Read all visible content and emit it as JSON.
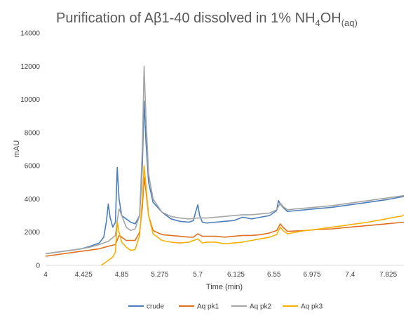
{
  "chart_data": {
    "type": "line",
    "title": {
      "main": "Purification of Aβ1-40 dissolved in 1% NH",
      "sub1": "4",
      "mid": "OH",
      "sub2": "(aq)"
    },
    "xlabel": "Time (min)",
    "ylabel": "mAU",
    "xlim": [
      4,
      8
    ],
    "ylim": [
      0,
      14000
    ],
    "x_ticks": [
      "4",
      "4.425",
      "4.85",
      "5.275",
      "5.7",
      "6.125",
      "6.55",
      "6.975",
      "7.4",
      "7.825"
    ],
    "y_ticks": [
      "0",
      "2000",
      "4000",
      "6000",
      "8000",
      "10000",
      "12000",
      "14000"
    ],
    "grid": false,
    "legend_position": "bottom",
    "series": [
      {
        "name": "crude",
        "color": "#4A7EBB",
        "points": [
          [
            4.0,
            700
          ],
          [
            4.2,
            850
          ],
          [
            4.4,
            1000
          ],
          [
            4.5,
            1150
          ],
          [
            4.6,
            1350
          ],
          [
            4.65,
            1700
          ],
          [
            4.68,
            2700
          ],
          [
            4.7,
            3700
          ],
          [
            4.72,
            2900
          ],
          [
            4.75,
            2300
          ],
          [
            4.78,
            2600
          ],
          [
            4.8,
            5900
          ],
          [
            4.82,
            4000
          ],
          [
            4.85,
            3000
          ],
          [
            4.9,
            2800
          ],
          [
            4.95,
            2600
          ],
          [
            5.0,
            2500
          ],
          [
            5.05,
            3000
          ],
          [
            5.08,
            6000
          ],
          [
            5.1,
            9900
          ],
          [
            5.12,
            7500
          ],
          [
            5.15,
            5000
          ],
          [
            5.2,
            3800
          ],
          [
            5.3,
            3200
          ],
          [
            5.4,
            2800
          ],
          [
            5.5,
            2650
          ],
          [
            5.6,
            2600
          ],
          [
            5.65,
            2700
          ],
          [
            5.68,
            3300
          ],
          [
            5.7,
            3650
          ],
          [
            5.72,
            3000
          ],
          [
            5.75,
            2600
          ],
          [
            5.8,
            2550
          ],
          [
            5.9,
            2600
          ],
          [
            6.0,
            2650
          ],
          [
            6.1,
            2700
          ],
          [
            6.2,
            2900
          ],
          [
            6.3,
            2800
          ],
          [
            6.4,
            2900
          ],
          [
            6.5,
            3000
          ],
          [
            6.58,
            3300
          ],
          [
            6.6,
            3900
          ],
          [
            6.62,
            3700
          ],
          [
            6.65,
            3500
          ],
          [
            6.7,
            3250
          ],
          [
            6.8,
            3300
          ],
          [
            6.9,
            3350
          ],
          [
            7.0,
            3400
          ],
          [
            7.2,
            3500
          ],
          [
            7.4,
            3650
          ],
          [
            7.6,
            3800
          ],
          [
            7.8,
            3950
          ],
          [
            8.0,
            4150
          ]
        ]
      },
      {
        "name": "Aq pk1",
        "color": "#E07020",
        "points": [
          [
            4.0,
            550
          ],
          [
            4.2,
            700
          ],
          [
            4.4,
            850
          ],
          [
            4.6,
            1000
          ],
          [
            4.7,
            1150
          ],
          [
            4.78,
            1250
          ],
          [
            4.82,
            1800
          ],
          [
            4.85,
            1700
          ],
          [
            4.9,
            1500
          ],
          [
            5.0,
            1500
          ],
          [
            5.05,
            2000
          ],
          [
            5.08,
            3500
          ],
          [
            5.1,
            5300
          ],
          [
            5.12,
            4500
          ],
          [
            5.15,
            3000
          ],
          [
            5.2,
            2100
          ],
          [
            5.3,
            1850
          ],
          [
            5.4,
            1800
          ],
          [
            5.5,
            1750
          ],
          [
            5.6,
            1700
          ],
          [
            5.65,
            1700
          ],
          [
            5.7,
            1900
          ],
          [
            5.75,
            1750
          ],
          [
            5.9,
            1750
          ],
          [
            6.0,
            1700
          ],
          [
            6.1,
            1750
          ],
          [
            6.2,
            1800
          ],
          [
            6.3,
            1800
          ],
          [
            6.4,
            1850
          ],
          [
            6.5,
            1950
          ],
          [
            6.58,
            2100
          ],
          [
            6.62,
            2500
          ],
          [
            6.65,
            2300
          ],
          [
            6.7,
            2050
          ],
          [
            6.9,
            2100
          ],
          [
            7.0,
            2150
          ],
          [
            7.2,
            2200
          ],
          [
            7.4,
            2300
          ],
          [
            7.6,
            2400
          ],
          [
            7.8,
            2500
          ],
          [
            8.0,
            2600
          ]
        ]
      },
      {
        "name": "Aq pk2",
        "color": "#A5A5A5",
        "points": [
          [
            4.0,
            700
          ],
          [
            4.2,
            850
          ],
          [
            4.4,
            1000
          ],
          [
            4.5,
            1100
          ],
          [
            4.6,
            1250
          ],
          [
            4.7,
            1450
          ],
          [
            4.78,
            1800
          ],
          [
            4.8,
            2700
          ],
          [
            4.82,
            3400
          ],
          [
            4.85,
            3000
          ],
          [
            4.9,
            2300
          ],
          [
            4.95,
            2100
          ],
          [
            5.0,
            2200
          ],
          [
            5.05,
            3000
          ],
          [
            5.08,
            7000
          ],
          [
            5.1,
            12000
          ],
          [
            5.12,
            9000
          ],
          [
            5.15,
            5500
          ],
          [
            5.2,
            4000
          ],
          [
            5.3,
            3200
          ],
          [
            5.4,
            2950
          ],
          [
            5.5,
            2850
          ],
          [
            5.6,
            2800
          ],
          [
            5.7,
            2850
          ],
          [
            5.8,
            2850
          ],
          [
            5.9,
            2900
          ],
          [
            6.0,
            2950
          ],
          [
            6.1,
            3000
          ],
          [
            6.2,
            3050
          ],
          [
            6.3,
            3050
          ],
          [
            6.4,
            3100
          ],
          [
            6.5,
            3150
          ],
          [
            6.58,
            3350
          ],
          [
            6.62,
            3750
          ],
          [
            6.65,
            3550
          ],
          [
            6.7,
            3350
          ],
          [
            6.8,
            3400
          ],
          [
            6.9,
            3450
          ],
          [
            7.0,
            3500
          ],
          [
            7.2,
            3600
          ],
          [
            7.4,
            3750
          ],
          [
            7.6,
            3900
          ],
          [
            7.8,
            4050
          ],
          [
            8.0,
            4200
          ]
        ]
      },
      {
        "name": "Aq pk3",
        "color": "#F5B000",
        "points": [
          [
            4.62,
            0
          ],
          [
            4.65,
            100
          ],
          [
            4.7,
            300
          ],
          [
            4.75,
            500
          ],
          [
            4.78,
            800
          ],
          [
            4.8,
            2600
          ],
          [
            4.82,
            2000
          ],
          [
            4.85,
            1400
          ],
          [
            4.9,
            1100
          ],
          [
            4.95,
            900
          ],
          [
            5.0,
            950
          ],
          [
            5.05,
            1800
          ],
          [
            5.08,
            4000
          ],
          [
            5.1,
            6000
          ],
          [
            5.12,
            4800
          ],
          [
            5.15,
            3000
          ],
          [
            5.2,
            1900
          ],
          [
            5.3,
            1500
          ],
          [
            5.4,
            1400
          ],
          [
            5.5,
            1350
          ],
          [
            5.6,
            1400
          ],
          [
            5.7,
            1600
          ],
          [
            5.75,
            1350
          ],
          [
            5.8,
            1400
          ],
          [
            5.9,
            1400
          ],
          [
            6.0,
            1300
          ],
          [
            6.1,
            1350
          ],
          [
            6.2,
            1400
          ],
          [
            6.3,
            1500
          ],
          [
            6.4,
            1600
          ],
          [
            6.5,
            1700
          ],
          [
            6.58,
            1850
          ],
          [
            6.62,
            2300
          ],
          [
            6.65,
            2100
          ],
          [
            6.7,
            1900
          ],
          [
            6.8,
            2000
          ],
          [
            6.9,
            2100
          ],
          [
            7.0,
            2150
          ],
          [
            7.2,
            2300
          ],
          [
            7.4,
            2450
          ],
          [
            7.6,
            2600
          ],
          [
            7.8,
            2800
          ],
          [
            8.0,
            3000
          ]
        ]
      }
    ]
  }
}
